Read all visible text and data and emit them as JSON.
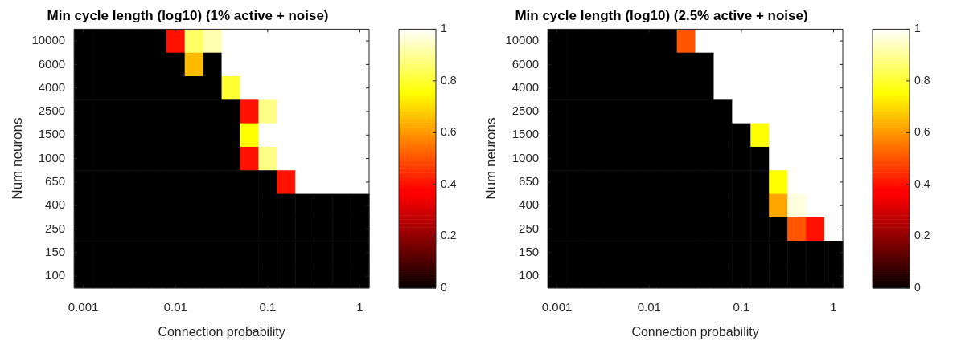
{
  "chart_data": [
    {
      "type": "heatmap",
      "title": "Min cycle length (log10) (1% active + noise)",
      "xlabel": "Connection probability",
      "ylabel": "Num neurons",
      "categories": [
        "0.001",
        null,
        null,
        null,
        null,
        "0.01",
        null,
        null,
        null,
        null,
        "0.1",
        null,
        null,
        null,
        null,
        "1"
      ],
      "y_categories": [
        "10000",
        "6000",
        "4000",
        "2500",
        "1500",
        "1000",
        "650",
        "400",
        "250",
        "150",
        "100"
      ],
      "cells": [
        [
          0,
          0,
          0,
          0,
          0,
          0.4,
          0.85,
          0.92,
          1,
          1,
          1,
          1,
          1,
          1,
          1,
          1
        ],
        [
          0,
          0,
          0,
          0,
          0,
          0,
          0.65,
          0,
          1,
          1,
          1,
          1,
          1,
          1,
          1,
          1
        ],
        [
          0,
          0,
          0,
          0,
          0,
          0,
          0,
          0,
          0.8,
          1,
          1,
          1,
          1,
          1,
          1,
          1
        ],
        [
          0,
          0,
          0,
          0,
          0,
          0,
          0,
          0,
          0,
          0.4,
          0.88,
          1,
          1,
          1,
          1,
          1
        ],
        [
          0,
          0,
          0,
          0,
          0,
          0,
          0,
          0,
          0,
          0.75,
          1,
          1,
          1,
          1,
          1,
          1
        ],
        [
          0,
          0,
          0,
          0,
          0,
          0,
          0,
          0,
          0,
          0.4,
          0.88,
          1,
          1,
          1,
          1,
          1
        ],
        [
          0,
          0,
          0,
          0,
          0,
          0,
          0,
          0,
          0,
          0,
          0,
          0.4,
          1,
          1,
          1,
          1
        ],
        [
          0,
          0,
          0,
          0,
          0,
          0,
          0,
          0,
          0,
          0,
          0,
          0,
          0,
          0,
          0,
          0
        ],
        [
          0,
          0,
          0,
          0,
          0,
          0,
          0,
          0,
          0,
          0,
          0,
          0,
          0,
          0,
          0,
          0
        ],
        [
          0,
          0,
          0,
          0,
          0,
          0,
          0,
          0,
          0,
          0,
          0,
          0,
          0,
          0,
          0,
          0
        ],
        [
          0,
          0,
          0,
          0,
          0,
          0,
          0,
          0,
          0,
          0,
          0,
          0,
          0,
          0,
          0,
          0
        ]
      ],
      "clim": [
        0,
        1
      ],
      "cticks": [
        0,
        0.2,
        0.4,
        0.6,
        0.8,
        1
      ]
    },
    {
      "type": "heatmap",
      "title": "Min cycle length (log10) (2.5% active + noise)",
      "xlabel": "Connection probability",
      "ylabel": "Num neurons",
      "categories": [
        "0.001",
        null,
        null,
        null,
        null,
        "0.01",
        null,
        null,
        null,
        null,
        "0.1",
        null,
        null,
        null,
        null,
        "1"
      ],
      "y_categories": [
        "10000",
        "6000",
        "4000",
        "2500",
        "1500",
        "1000",
        "650",
        "400",
        "250",
        "150",
        "100"
      ],
      "cells": [
        [
          0,
          0,
          0,
          0,
          0,
          0,
          0,
          0.5,
          1,
          1,
          1,
          1,
          1,
          1,
          1,
          1
        ],
        [
          0,
          0,
          0,
          0,
          0,
          0,
          0,
          0,
          0,
          1,
          1,
          1,
          1,
          1,
          1,
          1
        ],
        [
          0,
          0,
          0,
          0,
          0,
          0,
          0,
          0,
          0,
          1,
          1,
          1,
          1,
          1,
          1,
          1
        ],
        [
          0,
          0,
          0,
          0,
          0,
          0,
          0,
          0,
          0,
          0,
          1,
          1,
          1,
          1,
          1,
          1
        ],
        [
          0,
          0,
          0,
          0,
          0,
          0,
          0,
          0,
          0,
          0,
          0,
          0.75,
          1,
          1,
          1,
          1
        ],
        [
          0,
          0,
          0,
          0,
          0,
          0,
          0,
          0,
          0,
          0,
          0,
          0,
          1,
          1,
          1,
          1
        ],
        [
          0,
          0,
          0,
          0,
          0,
          0,
          0,
          0,
          0,
          0,
          0,
          0,
          0.75,
          1,
          1,
          1
        ],
        [
          0,
          0,
          0,
          0,
          0,
          0,
          0,
          0,
          0,
          0,
          0,
          0,
          0.62,
          0.97,
          1,
          1
        ],
        [
          0,
          0,
          0,
          0,
          0,
          0,
          0,
          0,
          0,
          0,
          0,
          0,
          0,
          0.5,
          0.4,
          1
        ],
        [
          0,
          0,
          0,
          0,
          0,
          0,
          0,
          0,
          0,
          0,
          0,
          0,
          0,
          0,
          0,
          0
        ],
        [
          0,
          0,
          0,
          0,
          0,
          0,
          0,
          0,
          0,
          0,
          0,
          0,
          0,
          0,
          0,
          0
        ]
      ],
      "clim": [
        0,
        1
      ],
      "cticks": [
        0,
        0.2,
        0.4,
        0.6,
        0.8,
        1
      ]
    }
  ]
}
